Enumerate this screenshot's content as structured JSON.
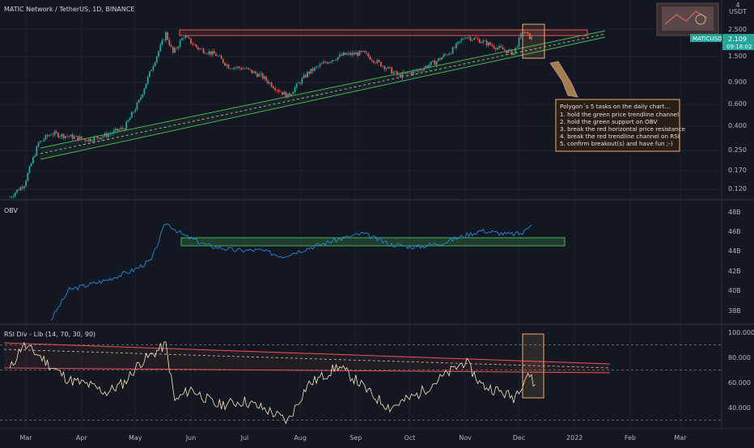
{
  "chart_data": [
    {
      "type": "candlestick",
      "title": "MATIC Network / TetherUS, 1D, BINANCE",
      "currency": "USDT",
      "y_scale": "log",
      "ylim": [
        0.1,
        4
      ],
      "y_ticks": [
        "4",
        "2.500",
        "2.109",
        "1.500",
        "0.900",
        "0.600",
        "0.400",
        "0.250",
        "0.170",
        "0.120"
      ],
      "last_price": "2.109",
      "symbol_label": "MATICUSDT",
      "countdown": "09:18:02",
      "price_path": [
        [
          "2021-02-20",
          0.11
        ],
        [
          "2021-02-28",
          0.14
        ],
        [
          "2021-03-08",
          0.3
        ],
        [
          "2021-03-15",
          0.36
        ],
        [
          "2021-03-25",
          0.34
        ],
        [
          "2021-04-05",
          0.32
        ],
        [
          "2021-04-15",
          0.35
        ],
        [
          "2021-04-25",
          0.4
        ],
        [
          "2021-05-03",
          0.65
        ],
        [
          "2021-05-10",
          1.2
        ],
        [
          "2021-05-18",
          2.3
        ],
        [
          "2021-05-22",
          1.6
        ],
        [
          "2021-05-28",
          2.2
        ],
        [
          "2021-06-05",
          1.75
        ],
        [
          "2021-06-15",
          1.55
        ],
        [
          "2021-06-22",
          1.25
        ],
        [
          "2021-07-01",
          1.2
        ],
        [
          "2021-07-10",
          1.05
        ],
        [
          "2021-07-20",
          0.8
        ],
        [
          "2021-07-25",
          0.72
        ],
        [
          "2021-08-05",
          1.1
        ],
        [
          "2021-08-15",
          1.35
        ],
        [
          "2021-08-25",
          1.55
        ],
        [
          "2021-09-05",
          1.6
        ],
        [
          "2021-09-15",
          1.3
        ],
        [
          "2021-09-25",
          1.05
        ],
        [
          "2021-10-05",
          1.15
        ],
        [
          "2021-10-15",
          1.35
        ],
        [
          "2021-10-25",
          1.7
        ],
        [
          "2021-11-01",
          2.2
        ],
        [
          "2021-11-10",
          2.0
        ],
        [
          "2021-11-20",
          1.75
        ],
        [
          "2021-11-28",
          1.6
        ],
        [
          "2021-12-03",
          2.4
        ],
        [
          "2021-12-08",
          2.109
        ]
      ],
      "annotation": {
        "title": "Polygon´s 5 tasks on the daily chart...",
        "lines": [
          "1. hold the green price trendline channel",
          "2. hold the green support on OBV",
          "3. break the red horizontal price resistance",
          "4. break the red trendline channel on RSI",
          "5. confirm breakout(s) and have fun ;-)"
        ]
      }
    },
    {
      "type": "line",
      "name": "OBV",
      "y_ticks": [
        "48B",
        "46B",
        "44B",
        "42B",
        "40B",
        "38B"
      ],
      "ylim": [
        37,
        49
      ],
      "series": [
        {
          "name": "OBV",
          "values": [
            [
              "2021-03-15",
              37.0
            ],
            [
              "2021-03-25",
              40.0
            ],
            [
              "2021-04-15",
              41.0
            ],
            [
              "2021-04-30",
              42.0
            ],
            [
              "2021-05-10",
              43.0
            ],
            [
              "2021-05-18",
              46.8
            ],
            [
              "2021-05-28",
              45.5
            ],
            [
              "2021-06-10",
              44.5
            ],
            [
              "2021-06-25",
              44.0
            ],
            [
              "2021-07-10",
              44.0
            ],
            [
              "2021-07-22",
              43.4
            ],
            [
              "2021-08-05",
              44.2
            ],
            [
              "2021-08-20",
              45.0
            ],
            [
              "2021-09-05",
              45.7
            ],
            [
              "2021-09-20",
              44.6
            ],
            [
              "2021-10-05",
              44.3
            ],
            [
              "2021-10-20",
              44.8
            ],
            [
              "2021-11-01",
              45.5
            ],
            [
              "2021-11-10",
              46.0
            ],
            [
              "2021-11-25",
              45.6
            ],
            [
              "2021-12-03",
              45.7
            ],
            [
              "2021-12-08",
              46.8
            ]
          ]
        }
      ]
    },
    {
      "type": "line",
      "name": "RSI Div - Lib (14, 70, 30, 90)",
      "y_ticks": [
        "100.000",
        "80.000",
        "60.000",
        "40.000"
      ],
      "ylim": [
        25,
        100
      ],
      "series": [
        {
          "name": "RSI",
          "values": [
            [
              "2021-02-20",
              70
            ],
            [
              "2021-02-27",
              90
            ],
            [
              "2021-03-08",
              82
            ],
            [
              "2021-03-15",
              73
            ],
            [
              "2021-03-25",
              62
            ],
            [
              "2021-04-05",
              58
            ],
            [
              "2021-04-15",
              52
            ],
            [
              "2021-04-25",
              60
            ],
            [
              "2021-05-03",
              75
            ],
            [
              "2021-05-12",
              84
            ],
            [
              "2021-05-18",
              90
            ],
            [
              "2021-05-23",
              45
            ],
            [
              "2021-06-01",
              55
            ],
            [
              "2021-06-15",
              42
            ],
            [
              "2021-07-01",
              45
            ],
            [
              "2021-07-15",
              37
            ],
            [
              "2021-07-25",
              29
            ],
            [
              "2021-08-05",
              58
            ],
            [
              "2021-08-15",
              66
            ],
            [
              "2021-08-22",
              73
            ],
            [
              "2021-09-01",
              62
            ],
            [
              "2021-09-10",
              50
            ],
            [
              "2021-09-20",
              40
            ],
            [
              "2021-10-05",
              50
            ],
            [
              "2021-10-15",
              60
            ],
            [
              "2021-10-25",
              70
            ],
            [
              "2021-11-01",
              77
            ],
            [
              "2021-11-10",
              58
            ],
            [
              "2021-11-20",
              53
            ],
            [
              "2021-11-28",
              48
            ],
            [
              "2021-12-03",
              60
            ],
            [
              "2021-12-06",
              68
            ],
            [
              "2021-12-10",
              57
            ]
          ]
        }
      ],
      "levels": [
        70,
        30,
        90
      ]
    }
  ],
  "x_axis": {
    "labels": [
      [
        "2021-03-01",
        "Mar"
      ],
      [
        "2021-04-01",
        "Apr"
      ],
      [
        "2021-05-01",
        "May"
      ],
      [
        "2021-06-01",
        "Jun"
      ],
      [
        "2021-07-01",
        "Jul"
      ],
      [
        "2021-08-01",
        "Aug"
      ],
      [
        "2021-09-01",
        "Sep"
      ],
      [
        "2021-10-01",
        "Oct"
      ],
      [
        "2021-11-01",
        "Nov"
      ],
      [
        "2021-12-01",
        "Dec"
      ],
      [
        "2022-01-01",
        "2022"
      ],
      [
        "2022-02-01",
        "Feb"
      ],
      [
        "2022-03-01",
        "Mar"
      ]
    ]
  },
  "colors": {
    "bg": "#131722",
    "up": "#26a69a",
    "down": "#ef5350",
    "obv": "#2196f3",
    "rsi": "#f7e8b8",
    "resistance": "#ef5350",
    "channel": "#4caf50",
    "annotation_border": "#f5a96b",
    "annotation_bg": "#2a1f14"
  }
}
